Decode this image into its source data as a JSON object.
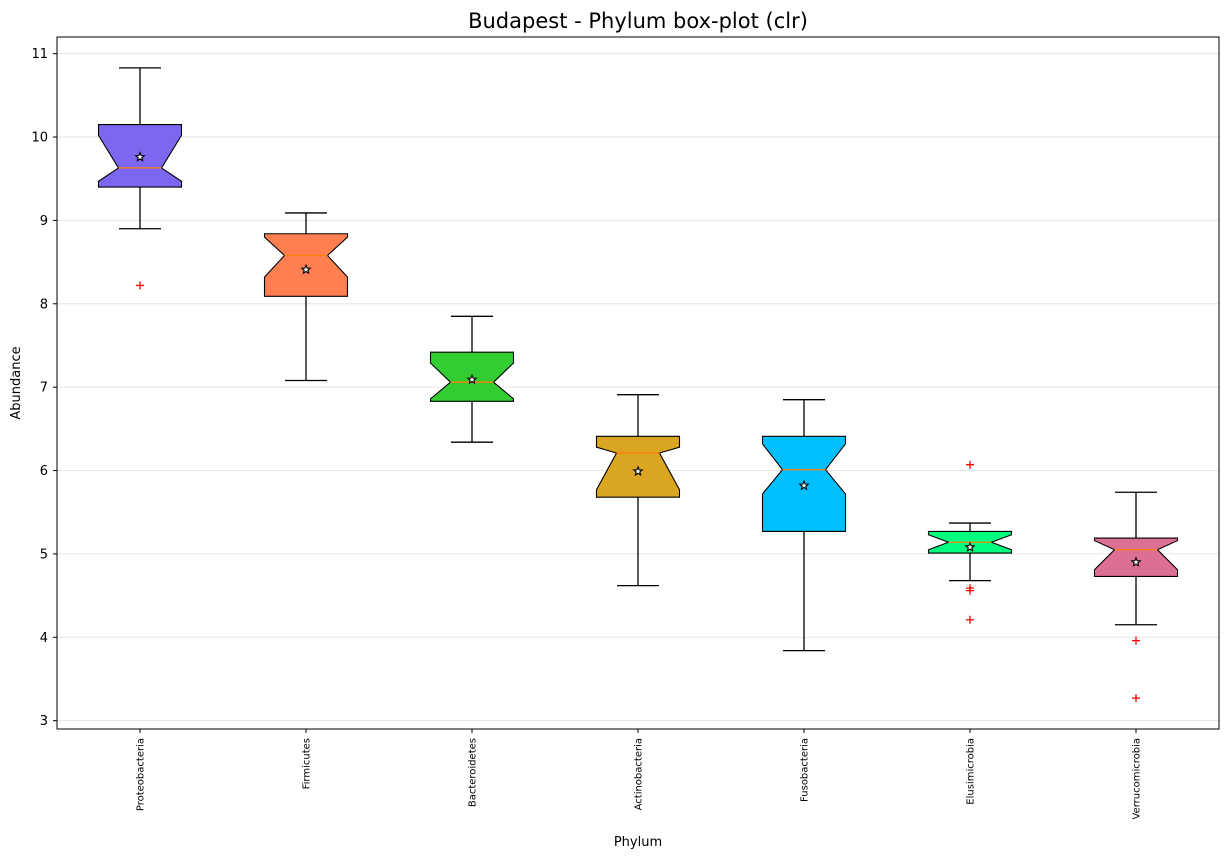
{
  "chart_data": {
    "type": "box",
    "title": "Budapest - Phylum box-plot (clr)",
    "xlabel": "Phylum",
    "ylabel": "Abundance",
    "ylim": [
      2.9,
      11.2
    ],
    "yticks": [
      3,
      4,
      5,
      6,
      7,
      8,
      9,
      10,
      11
    ],
    "grid": "horizontal",
    "notched": true,
    "categories": [
      "Proteobacteria",
      "Firmicutes",
      "Bacteroidetes",
      "Actinobacteria",
      "Fusobacteria",
      "Elusimicrobia",
      "Verrucomicrobia"
    ],
    "boxes": [
      {
        "whisker_low": 8.9,
        "q1": 9.4,
        "median": 9.63,
        "q3": 10.15,
        "whisker_high": 10.83,
        "mean": 9.76,
        "notch_low": 9.47,
        "notch_high": 10.02,
        "outliers": [
          8.22
        ],
        "color": "#7B68EE"
      },
      {
        "whisker_low": 7.08,
        "q1": 8.09,
        "median": 8.58,
        "q3": 8.84,
        "whisker_high": 9.09,
        "mean": 8.41,
        "notch_low": 8.32,
        "notch_high": 8.8,
        "outliers": [],
        "color": "#FF7F50"
      },
      {
        "whisker_low": 6.34,
        "q1": 6.83,
        "median": 7.06,
        "q3": 7.42,
        "whisker_high": 7.85,
        "mean": 7.09,
        "notch_low": 6.86,
        "notch_high": 7.29,
        "outliers": [],
        "color": "#32CD32"
      },
      {
        "whisker_low": 4.62,
        "q1": 5.68,
        "median": 6.21,
        "q3": 6.41,
        "whisker_high": 6.91,
        "mean": 5.99,
        "notch_low": 5.77,
        "notch_high": 6.28,
        "outliers": [],
        "color": "#DAA520"
      },
      {
        "whisker_low": 3.84,
        "q1": 5.27,
        "median": 6.01,
        "q3": 6.41,
        "whisker_high": 6.85,
        "mean": 5.82,
        "notch_low": 5.72,
        "notch_high": 6.32,
        "outliers": [],
        "color": "#00BFFF"
      },
      {
        "whisker_low": 4.68,
        "q1": 5.01,
        "median": 5.14,
        "q3": 5.27,
        "whisker_high": 5.37,
        "mean": 5.08,
        "notch_low": 5.05,
        "notch_high": 5.23,
        "outliers": [
          6.07,
          4.59,
          4.56,
          4.21
        ],
        "color": "#00FF7F"
      },
      {
        "whisker_low": 4.15,
        "q1": 4.73,
        "median": 5.05,
        "q3": 5.19,
        "whisker_high": 5.74,
        "mean": 4.9,
        "notch_low": 4.81,
        "notch_high": 5.16,
        "outliers": [
          3.96,
          3.27
        ],
        "color": "#DB7093"
      }
    ],
    "median_color": "#FF7F0E",
    "mean_marker": "star",
    "outlier_marker": "plus",
    "outlier_color": "#FF0000"
  }
}
